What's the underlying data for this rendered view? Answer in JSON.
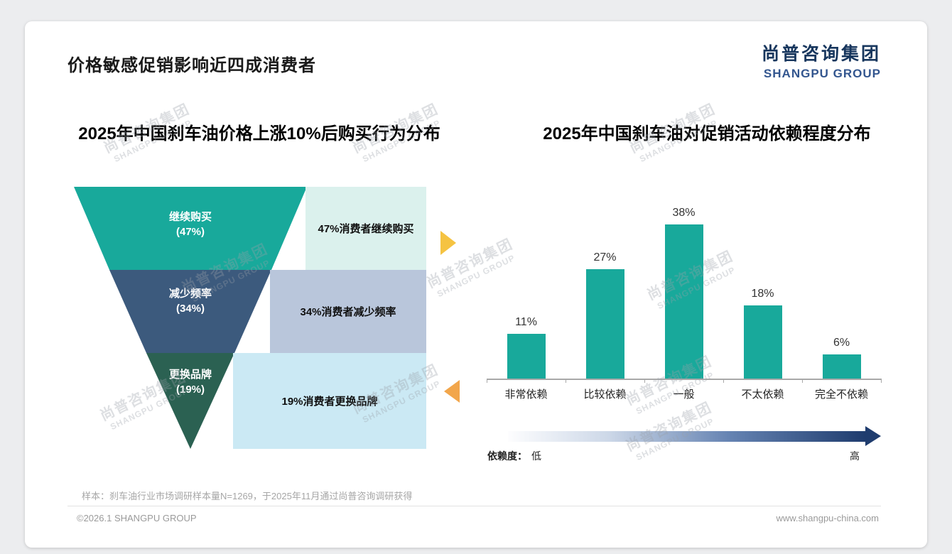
{
  "page": {
    "title": "价格敏感促销影响近四成消费者",
    "logo_cn": "尚普咨询集团",
    "logo_en": "SHANGPU GROUP",
    "watermark_cn": "尚普咨询集团",
    "watermark_en": "SHANGPU GROUP",
    "sample_note": "样本：刹车油行业市场调研样本量N=1269，于2025年11月通过尚普咨询调研获得",
    "footer_left": "©2026.1 SHANGPU GROUP",
    "footer_right": "www.shangpu-china.com"
  },
  "chart_data": [
    {
      "type": "funnel",
      "title": "2025年中国刹车油价格上涨10%后购买行为分布",
      "segments": [
        {
          "label": "继续购买",
          "value": 47,
          "value_label": "(47%)",
          "annotation": "47%消费者继续购买",
          "color": "#18A99B",
          "annotation_bg": "#DBF1ED"
        },
        {
          "label": "减少频率",
          "value": 34,
          "value_label": "(34%)",
          "annotation": "34%消费者减少频率",
          "color": "#3C5A7D",
          "annotation_bg": "#B9C6DB"
        },
        {
          "label": "更换品牌",
          "value": 19,
          "value_label": "(19%)",
          "annotation": "19%消费者更换品牌",
          "color": "#2B6152",
          "annotation_bg": "#CBE9F4"
        }
      ]
    },
    {
      "type": "bar",
      "title": "2025年中国刹车油对促销活动依赖程度分布",
      "categories": [
        "非常依赖",
        "比较依赖",
        "一般",
        "不太依赖",
        "完全不依赖"
      ],
      "values": [
        11,
        27,
        38,
        18,
        6
      ],
      "bar_color": "#18A99B",
      "ylim": [
        0,
        40
      ],
      "legend_position": "none",
      "grid": false,
      "axis_labels": {
        "name": "依赖度：",
        "low": "低",
        "high": "高"
      }
    }
  ]
}
